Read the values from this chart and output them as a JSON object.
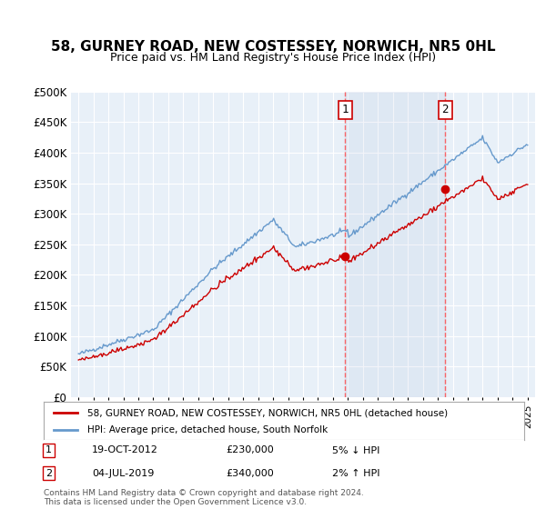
{
  "title": "58, GURNEY ROAD, NEW COSTESSEY, NORWICH, NR5 0HL",
  "subtitle": "Price paid vs. HM Land Registry's House Price Index (HPI)",
  "ylabel": "",
  "xlabel": "",
  "background_color": "#ffffff",
  "plot_bg_color": "#e8f0f8",
  "grid_color": "#ffffff",
  "sale1_date": "2012-10-19",
  "sale1_price": 230000,
  "sale1_label": "1",
  "sale1_x": 2012.8,
  "sale2_date": "2019-07-04",
  "sale2_price": 340000,
  "sale2_label": "2",
  "sale2_x": 2019.5,
  "hpi_color": "#6699cc",
  "price_color": "#cc0000",
  "vline_color": "#ff4444",
  "legend1": "58, GURNEY ROAD, NEW COSTESSEY, NORWICH, NR5 0HL (detached house)",
  "legend2": "HPI: Average price, detached house, South Norfolk",
  "annotation1_date": "19-OCT-2012",
  "annotation1_price": "£230,000",
  "annotation1_hpi": "5% ↓ HPI",
  "annotation2_date": "04-JUL-2019",
  "annotation2_price": "£340,000",
  "annotation2_hpi": "2% ↑ HPI",
  "footer": "Contains HM Land Registry data © Crown copyright and database right 2024.\nThis data is licensed under the Open Government Licence v3.0.",
  "ylim_min": 0,
  "ylim_max": 500000,
  "xlim_min": 1994.5,
  "xlim_max": 2025.5
}
